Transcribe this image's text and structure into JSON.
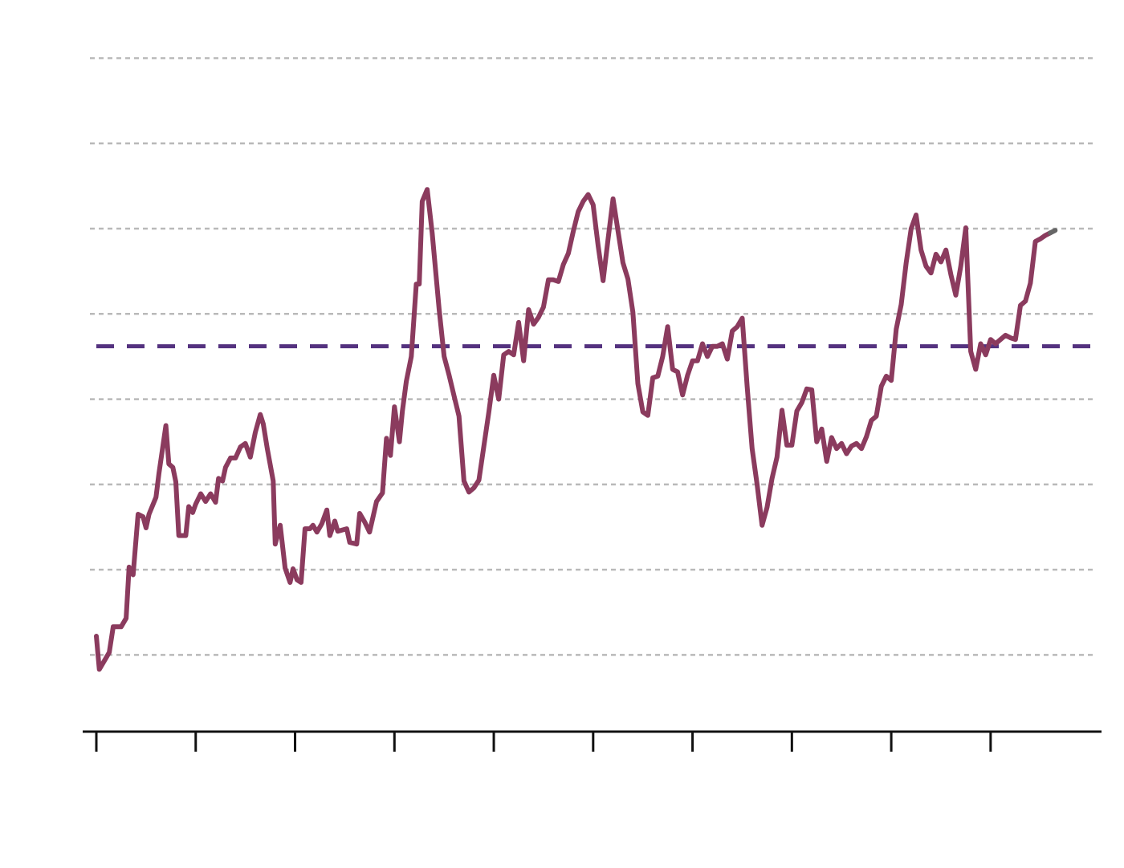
{
  "chart_data": {
    "type": "line",
    "title": "",
    "xlabel": "",
    "ylabel": "",
    "xlim": [
      2012.0,
      2022.1
    ],
    "ylim": [
      -0.2,
      8.1
    ],
    "x_ticks": [
      2012,
      2013,
      2014,
      2015,
      2016,
      2017,
      2018,
      2019,
      2020,
      2021
    ],
    "tick_labels_shown": false,
    "y_gridlines": [
      0.7,
      1.7,
      2.7,
      3.7,
      4.7,
      5.7,
      6.7,
      7.7
    ],
    "grid": true,
    "legend": "none",
    "reference_line": {
      "value": 4.32,
      "style": "dashed",
      "color": "#54327f"
    },
    "colors": {
      "series": "#8b3b5e",
      "final_segment": "#666666",
      "grid": "#b9b9b9",
      "axis": "#111111"
    },
    "series": [
      {
        "points": [
          [
            2012.0,
            0.92
          ],
          [
            2012.03,
            0.53
          ],
          [
            2012.13,
            0.73
          ],
          [
            2012.17,
            1.03
          ],
          [
            2012.25,
            1.03
          ],
          [
            2012.3,
            1.13
          ],
          [
            2012.33,
            1.73
          ],
          [
            2012.37,
            1.64
          ],
          [
            2012.42,
            2.35
          ],
          [
            2012.47,
            2.32
          ],
          [
            2012.5,
            2.19
          ],
          [
            2012.53,
            2.35
          ],
          [
            2012.6,
            2.55
          ],
          [
            2012.63,
            2.83
          ],
          [
            2012.7,
            3.39
          ],
          [
            2012.73,
            2.94
          ],
          [
            2012.77,
            2.9
          ],
          [
            2012.8,
            2.73
          ],
          [
            2012.83,
            2.1
          ],
          [
            2012.9,
            2.1
          ],
          [
            2012.93,
            2.44
          ],
          [
            2012.97,
            2.37
          ],
          [
            2013.0,
            2.47
          ],
          [
            2013.05,
            2.59
          ],
          [
            2013.1,
            2.5
          ],
          [
            2013.15,
            2.59
          ],
          [
            2013.2,
            2.49
          ],
          [
            2013.23,
            2.77
          ],
          [
            2013.27,
            2.74
          ],
          [
            2013.3,
            2.9
          ],
          [
            2013.35,
            3.01
          ],
          [
            2013.4,
            3.01
          ],
          [
            2013.45,
            3.14
          ],
          [
            2013.5,
            3.18
          ],
          [
            2013.55,
            3.02
          ],
          [
            2013.6,
            3.31
          ],
          [
            2013.65,
            3.52
          ],
          [
            2013.68,
            3.41
          ],
          [
            2013.72,
            3.12
          ],
          [
            2013.78,
            2.74
          ],
          [
            2013.8,
            2.0
          ],
          [
            2013.85,
            2.22
          ],
          [
            2013.9,
            1.72
          ],
          [
            2013.95,
            1.55
          ],
          [
            2013.98,
            1.71
          ],
          [
            2014.02,
            1.58
          ],
          [
            2014.06,
            1.55
          ],
          [
            2014.1,
            2.18
          ],
          [
            2014.15,
            2.18
          ],
          [
            2014.18,
            2.22
          ],
          [
            2014.22,
            2.14
          ],
          [
            2014.27,
            2.24
          ],
          [
            2014.32,
            2.4
          ],
          [
            2014.35,
            2.1
          ],
          [
            2014.4,
            2.27
          ],
          [
            2014.43,
            2.15
          ],
          [
            2014.52,
            2.18
          ],
          [
            2014.55,
            2.02
          ],
          [
            2014.62,
            2.0
          ],
          [
            2014.65,
            2.36
          ],
          [
            2014.7,
            2.26
          ],
          [
            2014.75,
            2.14
          ],
          [
            2014.82,
            2.5
          ],
          [
            2014.88,
            2.6
          ],
          [
            2014.92,
            3.24
          ],
          [
            2014.96,
            3.04
          ],
          [
            2015.0,
            3.61
          ],
          [
            2015.05,
            3.2
          ],
          [
            2015.08,
            3.56
          ],
          [
            2015.12,
            3.91
          ],
          [
            2015.17,
            4.2
          ],
          [
            2015.22,
            5.05
          ],
          [
            2015.25,
            5.05
          ],
          [
            2015.28,
            6.02
          ],
          [
            2015.33,
            6.16
          ],
          [
            2015.38,
            5.65
          ],
          [
            2015.45,
            4.75
          ],
          [
            2015.5,
            4.2
          ],
          [
            2015.55,
            3.98
          ],
          [
            2015.6,
            3.74
          ],
          [
            2015.65,
            3.5
          ],
          [
            2015.7,
            2.74
          ],
          [
            2015.75,
            2.61
          ],
          [
            2015.8,
            2.66
          ],
          [
            2015.85,
            2.75
          ],
          [
            2015.9,
            3.15
          ],
          [
            2015.95,
            3.55
          ],
          [
            2016.0,
            3.98
          ],
          [
            2016.05,
            3.7
          ],
          [
            2016.1,
            4.22
          ],
          [
            2016.15,
            4.26
          ],
          [
            2016.2,
            4.22
          ],
          [
            2016.25,
            4.6
          ],
          [
            2016.3,
            4.15
          ],
          [
            2016.35,
            4.75
          ],
          [
            2016.4,
            4.58
          ],
          [
            2016.45,
            4.66
          ],
          [
            2016.5,
            4.78
          ],
          [
            2016.55,
            5.1
          ],
          [
            2016.6,
            5.1
          ],
          [
            2016.65,
            5.08
          ],
          [
            2016.7,
            5.28
          ],
          [
            2016.75,
            5.41
          ],
          [
            2016.8,
            5.67
          ],
          [
            2016.85,
            5.9
          ],
          [
            2016.9,
            6.02
          ],
          [
            2016.95,
            6.1
          ],
          [
            2017.0,
            5.98
          ],
          [
            2017.05,
            5.5
          ],
          [
            2017.1,
            5.09
          ],
          [
            2017.15,
            5.58
          ],
          [
            2017.2,
            6.05
          ],
          [
            2017.25,
            5.67
          ],
          [
            2017.3,
            5.3
          ],
          [
            2017.35,
            5.11
          ],
          [
            2017.4,
            4.72
          ],
          [
            2017.45,
            3.88
          ],
          [
            2017.5,
            3.55
          ],
          [
            2017.55,
            3.51
          ],
          [
            2017.6,
            3.95
          ],
          [
            2017.65,
            3.97
          ],
          [
            2017.7,
            4.2
          ],
          [
            2017.75,
            4.55
          ],
          [
            2017.8,
            4.05
          ],
          [
            2017.85,
            4.02
          ],
          [
            2017.9,
            3.75
          ],
          [
            2017.95,
            3.98
          ],
          [
            2018.0,
            4.15
          ],
          [
            2018.05,
            4.15
          ],
          [
            2018.1,
            4.35
          ],
          [
            2018.15,
            4.2
          ],
          [
            2018.2,
            4.32
          ],
          [
            2018.25,
            4.32
          ],
          [
            2018.3,
            4.35
          ],
          [
            2018.35,
            4.17
          ],
          [
            2018.4,
            4.5
          ],
          [
            2018.45,
            4.55
          ],
          [
            2018.5,
            4.65
          ],
          [
            2018.55,
            3.85
          ],
          [
            2018.6,
            3.12
          ],
          [
            2018.65,
            2.7
          ],
          [
            2018.7,
            2.22
          ],
          [
            2018.75,
            2.43
          ],
          [
            2018.8,
            2.77
          ],
          [
            2018.85,
            3.02
          ],
          [
            2018.9,
            3.57
          ],
          [
            2018.95,
            3.16
          ],
          [
            2019.0,
            3.16
          ],
          [
            2019.05,
            3.56
          ],
          [
            2019.1,
            3.66
          ],
          [
            2019.15,
            3.82
          ],
          [
            2019.2,
            3.81
          ],
          [
            2019.25,
            3.2
          ],
          [
            2019.3,
            3.35
          ],
          [
            2019.35,
            2.97
          ],
          [
            2019.4,
            3.25
          ],
          [
            2019.45,
            3.12
          ],
          [
            2019.5,
            3.18
          ],
          [
            2019.55,
            3.06
          ],
          [
            2019.6,
            3.15
          ],
          [
            2019.65,
            3.18
          ],
          [
            2019.7,
            3.12
          ],
          [
            2019.75,
            3.26
          ],
          [
            2019.8,
            3.45
          ],
          [
            2019.85,
            3.5
          ],
          [
            2019.9,
            3.85
          ],
          [
            2019.95,
            3.97
          ],
          [
            2020.0,
            3.92
          ],
          [
            2020.05,
            4.52
          ],
          [
            2020.1,
            4.81
          ],
          [
            2020.15,
            5.3
          ],
          [
            2020.2,
            5.7
          ],
          [
            2020.25,
            5.86
          ],
          [
            2020.3,
            5.45
          ],
          [
            2020.35,
            5.26
          ],
          [
            2020.4,
            5.18
          ],
          [
            2020.45,
            5.4
          ],
          [
            2020.5,
            5.31
          ],
          [
            2020.55,
            5.45
          ],
          [
            2020.6,
            5.16
          ],
          [
            2020.65,
            4.92
          ],
          [
            2020.7,
            5.26
          ],
          [
            2020.75,
            5.71
          ],
          [
            2020.8,
            4.26
          ],
          [
            2020.85,
            4.05
          ],
          [
            2020.9,
            4.35
          ],
          [
            2020.95,
            4.22
          ],
          [
            2021.0,
            4.4
          ],
          [
            2021.05,
            4.35
          ],
          [
            2021.1,
            4.4
          ],
          [
            2021.15,
            4.45
          ],
          [
            2021.2,
            4.42
          ],
          [
            2021.25,
            4.4
          ],
          [
            2021.3,
            4.8
          ],
          [
            2021.35,
            4.85
          ],
          [
            2021.4,
            5.06
          ],
          [
            2021.45,
            5.55
          ],
          [
            2021.5,
            5.58
          ],
          [
            2021.55,
            5.62
          ],
          [
            2021.6,
            5.65
          ],
          [
            2021.65,
            5.68
          ]
        ]
      }
    ]
  }
}
